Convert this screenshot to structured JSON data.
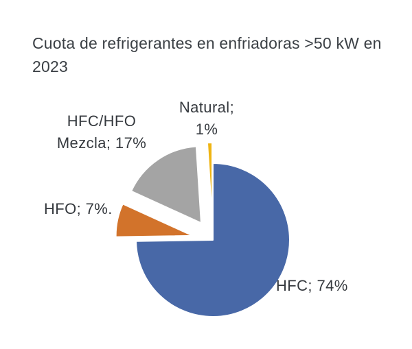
{
  "header": {
    "title_line1": "Cuota de refrigerantes en enfriadoras >50 kW en",
    "title_line2": "2023"
  },
  "chart_data": {
    "type": "pie",
    "title": "Cuota de refrigerantes en enfriadoras >50 kW en 2023",
    "unit": "%",
    "start_angle_deg": 0,
    "direction": "clockwise",
    "legend": "none",
    "label_format": "category; percent",
    "categories": [
      "HFC",
      "HFO",
      "HFC/HFO Mezcla",
      "Natural"
    ],
    "values": [
      74,
      7,
      17,
      1
    ],
    "slices": [
      {
        "name": "HFC",
        "value": 74,
        "color": "#4868A7",
        "exploded": false,
        "label_lines": [
          "HFC; 74%"
        ]
      },
      {
        "name": "HFO",
        "value": 7,
        "color": "#D2732B",
        "exploded": true,
        "label_lines": [
          "HFO; 7%."
        ]
      },
      {
        "name": "HFC/HFO Mezcla",
        "value": 17,
        "color": "#A4A4A4",
        "exploded": true,
        "label_lines": [
          "HFC/HFO",
          "Mezcla; 17%"
        ]
      },
      {
        "name": "Natural",
        "value": 1,
        "color": "#EFB412",
        "exploded": true,
        "label_lines": [
          "Natural;",
          "1%"
        ]
      }
    ],
    "colors": {
      "hfc_blue": "#4868A7",
      "hfo_orange": "#D2732B",
      "mix_gray": "#A4A4A4",
      "natural_yellow": "#EFB412",
      "text": "#3B4045",
      "background": "#FFFFFF"
    }
  }
}
